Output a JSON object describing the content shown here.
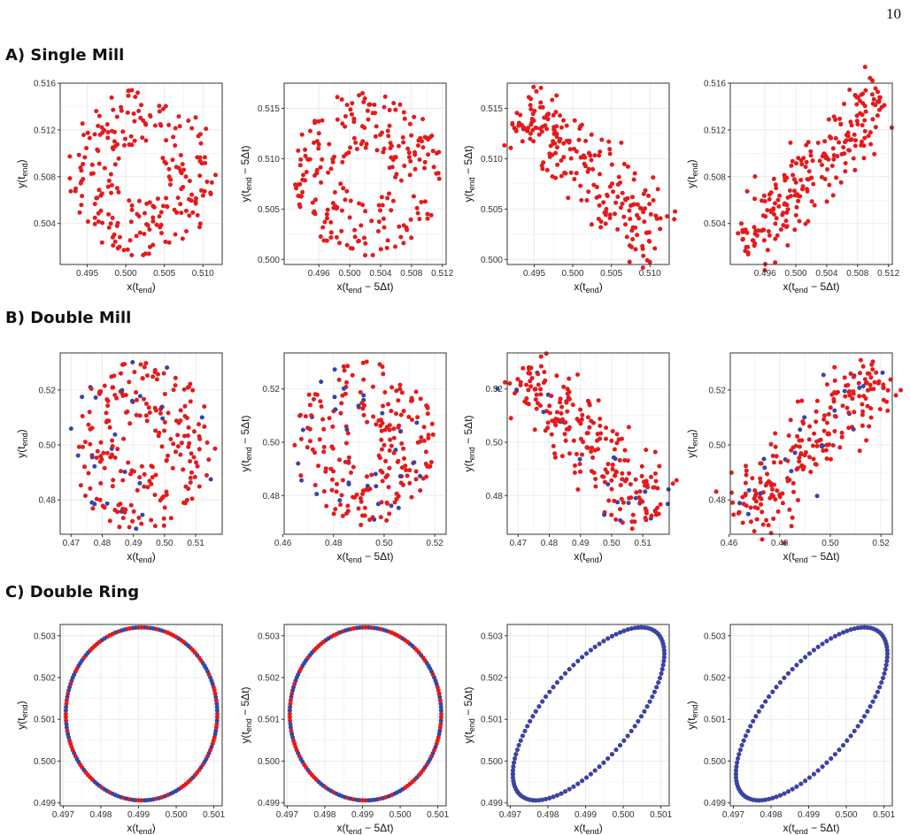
{
  "page_number": "10",
  "colors": {
    "group_a": "#e41a1c",
    "group_b": "#3446a8",
    "grid": "#ebebeb",
    "frame": "#333333"
  },
  "sections": [
    {
      "title": "A) Single Mill"
    },
    {
      "title": "B) Double Mill"
    },
    {
      "title": "C) Double Ring"
    }
  ],
  "chart_data": [
    {
      "id": "A1",
      "type": "scatter",
      "xlabel": "x(t_end)",
      "ylabel": "y(t_end)",
      "xlim": [
        0.4915,
        0.5125
      ],
      "ylim": [
        0.5005,
        0.516
      ],
      "xticks": [
        0.495,
        0.5,
        0.505,
        0.51
      ],
      "xtick_labels": [
        "0.495",
        "0.500",
        "0.505",
        "0.510"
      ],
      "yticks": [
        0.504,
        0.508,
        0.512,
        0.516
      ],
      "ytick_labels": [
        "0.504",
        "0.508",
        "0.512",
        "0.516"
      ],
      "shape": "disc",
      "center": [
        0.5022,
        0.5083
      ],
      "r": [
        0.0097,
        0.0072
      ],
      "inner": 0.32,
      "n": 230,
      "seed": 11,
      "groups": "red",
      "series": [
        {
          "color": "red"
        }
      ]
    },
    {
      "id": "A2",
      "type": "scatter",
      "xlabel": "x(t_end − 5Δt)",
      "ylabel": "y(t_end − 5Δt)",
      "xlim": [
        0.4915,
        0.5125
      ],
      "ylim": [
        0.4995,
        0.5175
      ],
      "xticks": [
        0.496,
        0.5,
        0.504,
        0.508,
        0.512
      ],
      "xtick_labels": [
        "0.496",
        "0.500",
        "0.504",
        "0.508",
        "0.512"
      ],
      "yticks": [
        0.5,
        0.505,
        0.51,
        0.515
      ],
      "ytick_labels": [
        "0.500",
        "0.505",
        "0.510",
        "0.515"
      ],
      "shape": "disc",
      "center": [
        0.5022,
        0.5085
      ],
      "r": [
        0.0097,
        0.0083
      ],
      "inner": 0.3,
      "n": 230,
      "seed": 23,
      "groups": "red",
      "series": [
        {
          "color": "red"
        }
      ]
    },
    {
      "id": "A3",
      "type": "scatter",
      "xlabel": "x(t_end)",
      "ylabel": "y(t_end − 5Δt)",
      "xlim": [
        0.4915,
        0.5125
      ],
      "ylim": [
        0.4995,
        0.5175
      ],
      "xticks": [
        0.495,
        0.5,
        0.505,
        0.51
      ],
      "xtick_labels": [
        "0.495",
        "0.500",
        "0.505",
        "0.510"
      ],
      "yticks": [
        0.5,
        0.505,
        0.51,
        0.515
      ],
      "ytick_labels": [
        "0.500",
        "0.505",
        "0.510",
        "0.515"
      ],
      "shape": "band",
      "from": [
        0.493,
        0.515
      ],
      "to": [
        0.5115,
        0.5015
      ],
      "width": 0.0055,
      "n": 230,
      "seed": 37,
      "groups": "red",
      "series": [
        {
          "color": "red"
        }
      ]
    },
    {
      "id": "A4",
      "type": "scatter",
      "xlabel": "x(t_end − 5Δt)",
      "ylabel": "y(t_end)",
      "xlim": [
        0.4915,
        0.5125
      ],
      "ylim": [
        0.5005,
        0.516
      ],
      "xticks": [
        0.496,
        0.5,
        0.504,
        0.508,
        0.512
      ],
      "xtick_labels": [
        "0.496",
        "0.500",
        "0.504",
        "0.508",
        "0.512"
      ],
      "yticks": [
        0.504,
        0.508,
        0.512,
        0.516
      ],
      "ytick_labels": [
        "0.504",
        "0.508",
        "0.512",
        "0.516"
      ],
      "shape": "band",
      "from": [
        0.493,
        0.5018
      ],
      "to": [
        0.5112,
        0.5148
      ],
      "width": 0.0045,
      "n": 230,
      "seed": 41,
      "groups": "red",
      "series": [
        {
          "color": "red"
        }
      ]
    },
    {
      "id": "B1",
      "type": "scatter",
      "xlabel": "x(t_end)",
      "ylabel": "y(t_end)",
      "xlim": [
        0.4665,
        0.5185
      ],
      "ylim": [
        0.4675,
        0.5335
      ],
      "xticks": [
        0.47,
        0.48,
        0.49,
        0.5,
        0.51
      ],
      "xtick_labels": [
        "0.47",
        "0.48",
        "0.49",
        "0.50",
        "0.51"
      ],
      "yticks": [
        0.48,
        0.5,
        0.52
      ],
      "ytick_labels": [
        "0.48",
        "0.50",
        "0.52"
      ],
      "shape": "disc",
      "center": [
        0.4925,
        0.4995
      ],
      "r": [
        0.0245,
        0.031
      ],
      "inner": 0.22,
      "n": 240,
      "seed": 53,
      "groups": "mix",
      "series": [
        {
          "color": "red"
        },
        {
          "color": "blue"
        }
      ]
    },
    {
      "id": "B2",
      "type": "scatter",
      "xlabel": "x(t_end − 5Δt)",
      "ylabel": "y(t_end − 5Δt)",
      "xlim": [
        0.4605,
        0.5245
      ],
      "ylim": [
        0.4655,
        0.5335
      ],
      "xticks": [
        0.46,
        0.48,
        0.5,
        0.52
      ],
      "xtick_labels": [
        "0.46",
        "0.48",
        "0.50",
        "0.52"
      ],
      "yticks": [
        0.48,
        0.5,
        0.52
      ],
      "ytick_labels": [
        "0.48",
        "0.50",
        "0.52"
      ],
      "shape": "disc",
      "center": [
        0.492,
        0.4995
      ],
      "r": [
        0.028,
        0.031
      ],
      "inner": 0.22,
      "n": 240,
      "seed": 67,
      "groups": "mix",
      "series": [
        {
          "color": "red"
        },
        {
          "color": "blue"
        }
      ]
    },
    {
      "id": "B3",
      "type": "scatter",
      "xlabel": "x(t_end)",
      "ylabel": "y(t_end − 5Δt)",
      "xlim": [
        0.4665,
        0.5185
      ],
      "ylim": [
        0.4655,
        0.5335
      ],
      "xticks": [
        0.47,
        0.48,
        0.49,
        0.5,
        0.51
      ],
      "xtick_labels": [
        "0.47",
        "0.48",
        "0.49",
        "0.50",
        "0.51"
      ],
      "yticks": [
        0.48,
        0.5,
        0.52
      ],
      "ytick_labels": [
        "0.48",
        "0.50",
        "0.52"
      ],
      "shape": "band",
      "from": [
        0.47,
        0.528
      ],
      "to": [
        0.515,
        0.473
      ],
      "width": 0.018,
      "n": 240,
      "seed": 79,
      "groups": "mix",
      "series": [
        {
          "color": "red"
        },
        {
          "color": "blue"
        }
      ]
    },
    {
      "id": "B4",
      "type": "scatter",
      "xlabel": "x(t_end − 5Δt)",
      "ylabel": "y(t_end)",
      "xlim": [
        0.4605,
        0.5245
      ],
      "ylim": [
        0.4675,
        0.5335
      ],
      "xticks": [
        0.46,
        0.48,
        0.5,
        0.52
      ],
      "xtick_labels": [
        "0.46",
        "0.48",
        "0.50",
        "0.52"
      ],
      "yticks": [
        0.48,
        0.5,
        0.52
      ],
      "ytick_labels": [
        "0.48",
        "0.50",
        "0.52"
      ],
      "shape": "band",
      "from": [
        0.464,
        0.472
      ],
      "to": [
        0.52,
        0.528
      ],
      "width": 0.019,
      "n": 240,
      "seed": 83,
      "groups": "mix",
      "series": [
        {
          "color": "red"
        },
        {
          "color": "blue"
        }
      ]
    },
    {
      "id": "C1",
      "type": "scatter",
      "xlabel": "x(t_end)",
      "ylabel": "y(t_end)",
      "xlim": [
        0.49692,
        0.50122
      ],
      "ylim": [
        0.49893,
        0.50327
      ],
      "xticks": [
        0.497,
        0.498,
        0.499,
        0.5,
        0.501
      ],
      "xtick_labels": [
        "0.497",
        "0.498",
        "0.499",
        "0.500",
        "0.501"
      ],
      "yticks": [
        0.499,
        0.5,
        0.501,
        0.502,
        0.503
      ],
      "ytick_labels": [
        "0.499",
        "0.500",
        "0.501",
        "0.502",
        "0.503"
      ],
      "shape": "ring",
      "center": [
        0.49908,
        0.50113
      ],
      "r": [
        0.00201,
        0.00207
      ],
      "n": 160,
      "mode": "circle",
      "series": [
        {
          "color": "red"
        },
        {
          "color": "blue"
        }
      ]
    },
    {
      "id": "C2",
      "type": "scatter",
      "xlabel": "x(t_end − 5Δt)",
      "ylabel": "y(t_end − 5Δt)",
      "xlim": [
        0.49692,
        0.50122
      ],
      "ylim": [
        0.49893,
        0.50327
      ],
      "xticks": [
        0.497,
        0.498,
        0.499,
        0.5,
        0.501
      ],
      "xtick_labels": [
        "0.497",
        "0.498",
        "0.499",
        "0.500",
        "0.501"
      ],
      "yticks": [
        0.499,
        0.5,
        0.501,
        0.502,
        0.503
      ],
      "ytick_labels": [
        "0.499",
        "0.500",
        "0.501",
        "0.502",
        "0.503"
      ],
      "shape": "ring",
      "center": [
        0.49908,
        0.50113
      ],
      "r": [
        0.00201,
        0.00207
      ],
      "n": 160,
      "mode": "circle",
      "series": [
        {
          "color": "red"
        },
        {
          "color": "blue"
        }
      ]
    },
    {
      "id": "C3",
      "type": "scatter",
      "xlabel": "x(t_end)",
      "ylabel": "y(t_end − 5Δt)",
      "xlim": [
        0.49692,
        0.50122
      ],
      "ylim": [
        0.49893,
        0.50327
      ],
      "xticks": [
        0.497,
        0.498,
        0.499,
        0.5,
        0.501
      ],
      "xtick_labels": [
        "0.497",
        "0.498",
        "0.499",
        "0.500",
        "0.501"
      ],
      "yticks": [
        0.499,
        0.5,
        0.501,
        0.502,
        0.503
      ],
      "ytick_labels": [
        "0.499",
        "0.500",
        "0.501",
        "0.502",
        "0.503"
      ],
      "shape": "ring",
      "center": [
        0.49908,
        0.50113
      ],
      "r": [
        0.00201,
        0.00207
      ],
      "n": 110,
      "mode": "lag",
      "series": [
        {
          "color": "red",
          "lag": 0.8
        },
        {
          "color": "blue",
          "lag": -0.8
        }
      ]
    },
    {
      "id": "C4",
      "type": "scatter",
      "xlabel": "x(t_end − 5Δt)",
      "ylabel": "y(t_end)",
      "xlim": [
        0.49692,
        0.50122
      ],
      "ylim": [
        0.49893,
        0.50327
      ],
      "xticks": [
        0.497,
        0.498,
        0.499,
        0.5,
        0.501
      ],
      "xtick_labels": [
        "0.497",
        "0.498",
        "0.499",
        "0.500",
        "0.501"
      ],
      "yticks": [
        0.499,
        0.5,
        0.501,
        0.502,
        0.503
      ],
      "ytick_labels": [
        "0.499",
        "0.500",
        "0.501",
        "0.502",
        "0.503"
      ],
      "shape": "ring",
      "center": [
        0.49908,
        0.50113
      ],
      "r": [
        0.00201,
        0.00207
      ],
      "n": 110,
      "mode": "lag",
      "series": [
        {
          "color": "red",
          "lag": -0.8
        },
        {
          "color": "blue",
          "lag": 0.8
        }
      ]
    }
  ]
}
